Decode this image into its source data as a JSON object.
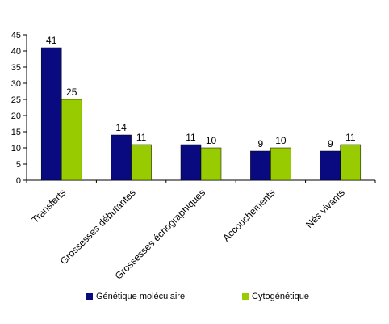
{
  "chart_data": {
    "type": "bar",
    "categories": [
      "Transferts",
      "Grossesses débutantes",
      "Grossesses échographiques",
      "Accouchements",
      "Nés vivants"
    ],
    "series": [
      {
        "name": "Génétique moléculaire",
        "values": [
          41,
          14,
          11,
          9,
          9
        ],
        "color": "#0a0a80"
      },
      {
        "name": "Cytogénétique",
        "values": [
          25,
          11,
          10,
          10,
          11
        ],
        "color": "#99cc00"
      }
    ],
    "ylim": [
      0,
      45
    ],
    "yticks": [
      0,
      5,
      10,
      15,
      20,
      25,
      30,
      35,
      40,
      45
    ],
    "data_labels": true,
    "grid": false,
    "legend_position": "bottom"
  }
}
